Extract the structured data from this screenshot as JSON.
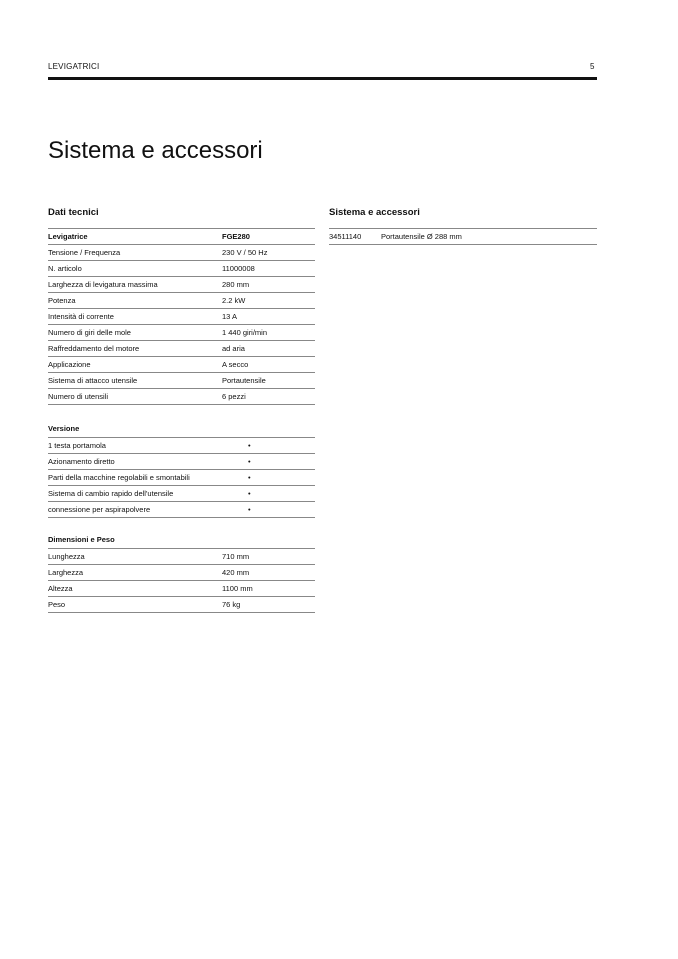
{
  "header": {
    "section": "LEVIGATRICI",
    "page_number": "5"
  },
  "title": "Sistema e accessori",
  "tech": {
    "heading": "Dati tecnici",
    "head_row": {
      "label": "Levigatrice",
      "value": "FGE280"
    },
    "rows": [
      {
        "label": "Tensione / Frequenza",
        "value": "230 V / 50 Hz"
      },
      {
        "label": "N. articolo",
        "value": "11000008"
      },
      {
        "label": "Larghezza di levigatura massima",
        "value": "280 mm"
      },
      {
        "label": "Potenza",
        "value": "2.2 kW"
      },
      {
        "label": "Intensità di corrente",
        "value": "13 A"
      },
      {
        "label": "Numero di giri delle mole",
        "value": "1 440 giri/min"
      },
      {
        "label": "Raffreddamento del motore",
        "value": "ad aria"
      },
      {
        "label": "Applicazione",
        "value": "A secco"
      },
      {
        "label": "Sistema di attacco utensile",
        "value": "Portautensile"
      },
      {
        "label": "Numero di utensili",
        "value": "6 pezzi"
      }
    ]
  },
  "version": {
    "heading": "Versione",
    "rows": [
      {
        "label": "1 testa portamola",
        "value": "•"
      },
      {
        "label": "Azionamento diretto",
        "value": "•"
      },
      {
        "label": "Parti della macchine regolabili e smontabili",
        "value": "•"
      },
      {
        "label": "Sistema di cambio rapido dell'utensile",
        "value": "•"
      },
      {
        "label": "connessione per aspirapolvere",
        "value": "•"
      }
    ]
  },
  "dims": {
    "heading": "Dimensioni e Peso",
    "rows": [
      {
        "label": "Lunghezza",
        "value": "710 mm"
      },
      {
        "label": "Larghezza",
        "value": "420 mm"
      },
      {
        "label": "Altezza",
        "value": "1100 mm"
      },
      {
        "label": "Peso",
        "value": "76 kg"
      }
    ]
  },
  "accessories": {
    "heading": "Sistema e accessori",
    "rows": [
      {
        "code": "34511140",
        "description": "Portautensile Ø 288 mm"
      }
    ]
  }
}
